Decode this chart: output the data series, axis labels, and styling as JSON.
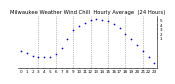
{
  "title": "Milwaukee Weather Wind Chill  Hourly Average  (24 Hours)",
  "hours": [
    0,
    1,
    2,
    3,
    4,
    5,
    6,
    7,
    8,
    9,
    10,
    11,
    12,
    13,
    14,
    15,
    16,
    17,
    18,
    19,
    20,
    21,
    22,
    23
  ],
  "wind_chill": [
    -1.8,
    -2.2,
    -2.8,
    -3.0,
    -3.2,
    -3.0,
    -2.5,
    -1.2,
    0.8,
    2.8,
    3.8,
    4.5,
    5.0,
    5.2,
    5.1,
    4.8,
    4.2,
    3.2,
    2.0,
    0.8,
    -0.5,
    -1.8,
    -3.2,
    -4.5
  ],
  "line_color": "#0000cc",
  "grid_color": "#888888",
  "bg_color": "#ffffff",
  "ylim": [
    -5.5,
    6.0
  ],
  "yticks": [
    1,
    2,
    3,
    4,
    5
  ],
  "xtick_labels_row1": [
    "0",
    "1",
    "2",
    "3",
    "4",
    "5",
    "6",
    "7",
    "8",
    "9",
    "10",
    "11",
    "12",
    "13",
    "14",
    "15",
    "16",
    "17",
    "18",
    "19",
    "20",
    "21",
    "22",
    "23"
  ],
  "title_fontsize": 3.8,
  "tick_fontsize": 3.0,
  "marker_size": 1.5,
  "vline_positions": [
    3,
    6,
    9,
    12,
    15,
    18,
    21
  ]
}
